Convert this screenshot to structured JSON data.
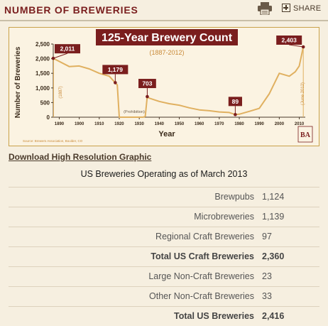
{
  "header": {
    "title": "NUMBER OF BREWERIES",
    "share_label": "SHARE"
  },
  "chart_data": {
    "type": "line",
    "title": "125-Year Brewery Count",
    "subtitle": "(1887-2012)",
    "xlabel": "Year",
    "ylabel": "Number of Breweries",
    "x_ticks": [
      1890,
      1900,
      1910,
      1920,
      1930,
      1940,
      1950,
      1960,
      1970,
      1980,
      1990,
      2000,
      2010
    ],
    "y_ticks": [
      "0",
      "500",
      "1,000",
      "1,500",
      "2,000",
      "2,500"
    ],
    "xlim": [
      1887,
      2013
    ],
    "ylim": [
      0,
      2500
    ],
    "grid": false,
    "series": [
      {
        "x": [
          1887,
          1895,
          1900,
          1905,
          1910,
          1915,
          1918,
          1919,
          1920,
          1932,
          1933,
          1934,
          1935,
          1940,
          1945,
          1950,
          1955,
          1960,
          1965,
          1970,
          1975,
          1978,
          1980,
          1985,
          1990,
          1995,
          2000,
          2005,
          2008,
          2010,
          2012
        ],
        "y": [
          2011,
          1730,
          1750,
          1650,
          1500,
          1400,
          1179,
          1100,
          0,
          0,
          31,
          703,
          650,
          540,
          460,
          410,
          320,
          250,
          220,
          180,
          160,
          89,
          101,
          200,
          300,
          800,
          1500,
          1400,
          1550,
          1750,
          2403
        ]
      }
    ],
    "annotations": [
      {
        "label": "2,011",
        "x": 1887,
        "y": 2011
      },
      {
        "label": "1,179",
        "x": 1918,
        "y": 1179
      },
      {
        "label": "703",
        "x": 1934,
        "y": 703
      },
      {
        "label": "89",
        "x": 1978,
        "y": 89
      },
      {
        "label": "2,403",
        "x": 2012,
        "y": 2403
      }
    ],
    "side_labels": {
      "left": "(1887)",
      "right": "(June 2012)",
      "prohibition": "(Prohibition)"
    },
    "source": "Source: Brewers Association, Boulder, CO",
    "logo_text": "BA"
  },
  "links": {
    "download": "Download High Resolution Graphic"
  },
  "table": {
    "caption": "US Breweries Operating as of March 2013",
    "rows": [
      {
        "label": "Brewpubs",
        "value": "1,124"
      },
      {
        "label": "Microbreweries",
        "value": "1,139"
      },
      {
        "label": "Regional Craft Breweries",
        "value": "97"
      },
      {
        "label": "Total US Craft Breweries",
        "value": "2,360"
      },
      {
        "label": "Large Non-Craft Breweries",
        "value": "23"
      },
      {
        "label": "Other Non-Craft Breweries",
        "value": "33"
      },
      {
        "label": "Total US Breweries",
        "value": "2,416"
      }
    ]
  },
  "colors": {
    "brand": "#7a1e1e",
    "line": "#e0b060",
    "chart_bg": "#fbf3e2",
    "frame": "#c9a24a"
  }
}
